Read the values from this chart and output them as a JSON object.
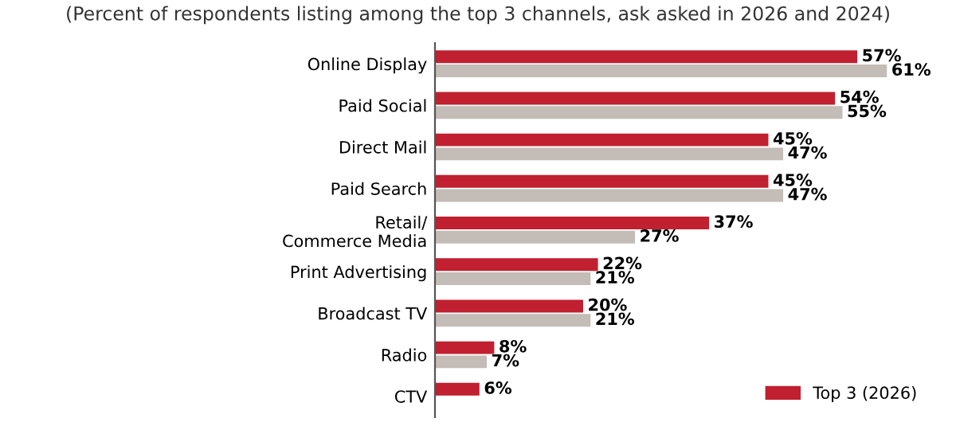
{
  "chart_data": {
    "type": "bar",
    "orientation": "horizontal",
    "subtitle": "(Percent of respondents listing among the top 3 channels, ask asked in 2026 and 2024)",
    "categories": [
      "Online Display",
      "Paid Social",
      "Direct Mail",
      "Paid Search",
      "Retail/\nCommerce Media",
      "Print Advertising",
      "Broadcast TV",
      "Radio",
      "CTV"
    ],
    "series": [
      {
        "name": "Top 3 (2026)",
        "color": "#c0202f",
        "values": [
          57,
          54,
          45,
          45,
          37,
          22,
          20,
          8,
          6
        ],
        "value_labels": [
          "57%",
          "54%",
          "45%",
          "45%",
          "37%",
          "22%",
          "20%",
          "8%",
          "6%"
        ]
      },
      {
        "color": "#c4bcb6",
        "values": [
          61,
          55,
          47,
          47,
          27,
          21,
          21,
          7,
          null
        ],
        "value_labels": [
          "61%",
          "55%",
          "47%",
          "47%",
          "27%",
          "21%",
          "21%",
          "7%",
          null
        ]
      }
    ],
    "tick_labels": false,
    "grid": false,
    "legend": "bottom right"
  }
}
